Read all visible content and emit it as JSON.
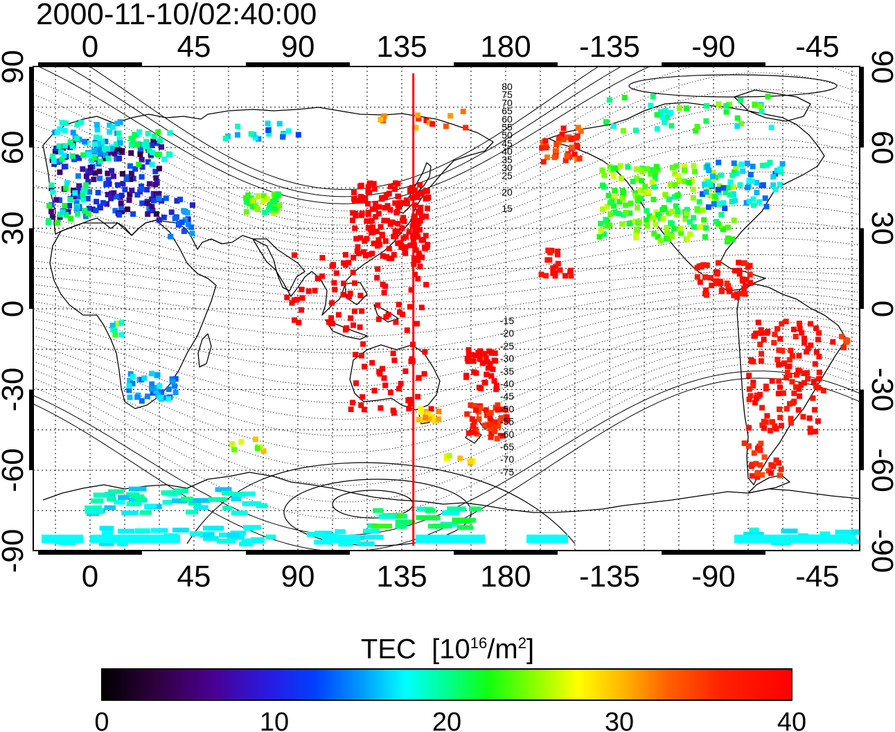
{
  "title": "2000-11-10/02:40:00",
  "map": {
    "x_tick_labels": [
      "0",
      "45",
      "90",
      "135",
      "180",
      "-135",
      "-90",
      "-45"
    ],
    "y_tick_labels": [
      "90",
      "60",
      "30",
      "0",
      "-30",
      "-60",
      "-90"
    ],
    "marker_longitude": 140,
    "marker_color": "#ff0000",
    "contour_labels_north": [
      "80",
      "75",
      "70",
      "65",
      "60",
      "55",
      "50",
      "45",
      "40",
      "35",
      "30",
      "25",
      "20",
      "15"
    ],
    "contour_labels_south": [
      "-15",
      "-20",
      "-25",
      "-30",
      "-35",
      "-40",
      "-45",
      "-50",
      "-55",
      "-60",
      "-65",
      "-70",
      "-75"
    ],
    "grid": true
  },
  "colorbar": {
    "title_text": "TEC",
    "unit_open": "[10",
    "unit_exp1": "16",
    "unit_mid": "/m",
    "unit_exp2": "2",
    "unit_close": "]",
    "tick_labels": [
      "0",
      "10",
      "20",
      "30",
      "40"
    ],
    "range": [
      0,
      40
    ]
  }
}
